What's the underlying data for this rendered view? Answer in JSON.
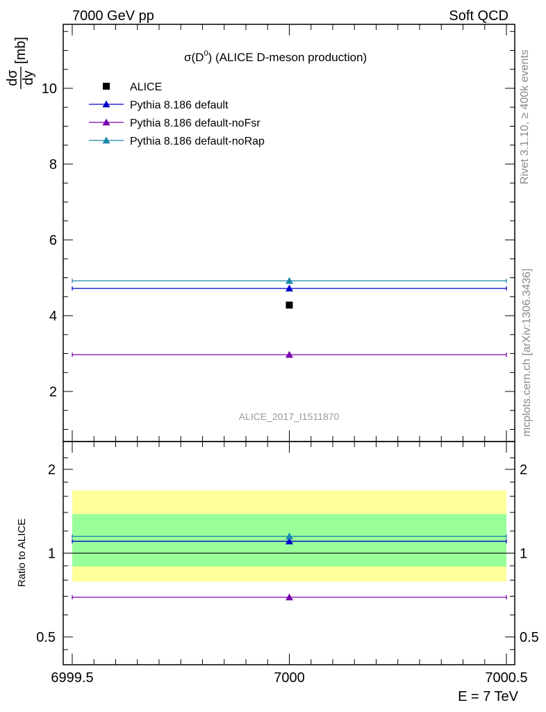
{
  "header": {
    "left": "7000 GeV pp",
    "right": "Soft QCD"
  },
  "side_labels": {
    "rivet": "Rivet 3.1.10, ≥ 400k events",
    "mcplots": "mcplots.cern.ch [arXiv:1306.3436]"
  },
  "chart_data": [
    {
      "type": "scatter",
      "title_main": "σ(D",
      "title_sup": "0",
      "title_rest": ") (ALICE D-meson production)",
      "ylabel": "dσ/dy [mb]",
      "ylabel_num": "dσ",
      "ylabel_den": "dy",
      "ylabel_unit": "[mb]",
      "xlim": [
        6999.5,
        7000.5
      ],
      "ylim": [
        0.8,
        11.7
      ],
      "y_ticks": [
        2,
        4,
        6,
        8,
        10
      ],
      "analysis_tag": "ALICE_2017_I1511870",
      "legend_position": "top-left",
      "data_point": {
        "name": "ALICE",
        "x": 7000,
        "y": 4.28,
        "color": "#000000"
      },
      "series": [
        {
          "name": "Pythia 8.186 default",
          "x": [
            7000
          ],
          "y": [
            4.72
          ],
          "xrange": [
            6999.5,
            7000.5
          ],
          "color": "#0000cc"
        },
        {
          "name": "Pythia 8.186 default-noFsr",
          "x": [
            7000
          ],
          "y": [
            2.97
          ],
          "xrange": [
            6999.5,
            7000.5
          ],
          "color": "#7700aa"
        },
        {
          "name": "Pythia 8.186 default-noRap",
          "x": [
            7000
          ],
          "y": [
            4.92
          ],
          "xrange": [
            6999.5,
            7000.5
          ],
          "color": "#1a88aa"
        }
      ]
    },
    {
      "type": "scatter",
      "ylabel": "Ratio to ALICE",
      "xlabel": "E = 7 TeV",
      "log_y": true,
      "ylim": [
        0.42,
        2.35
      ],
      "y_ticks": [
        0.5,
        1,
        2
      ],
      "y_tick_labels": [
        "0.5",
        "1",
        "2"
      ],
      "x_ticks": [
        6999.5,
        7000,
        7000.5
      ],
      "x_tick_labels": [
        "6999.5",
        "7000",
        "7000.5"
      ],
      "uncertainty_bands": [
        {
          "level": "outer",
          "low": 0.79,
          "high": 1.68,
          "color": "#ffff99"
        },
        {
          "level": "inner",
          "low": 0.895,
          "high": 1.38,
          "color": "#99ff99"
        }
      ],
      "reference": 1,
      "series": [
        {
          "name": "Pythia 8.186 default",
          "x": [
            7000
          ],
          "y": [
            1.103
          ],
          "color": "#0000cc"
        },
        {
          "name": "Pythia 8.186 default-noFsr",
          "x": [
            7000
          ],
          "y": [
            0.694
          ],
          "color": "#7700aa"
        },
        {
          "name": "Pythia 8.186 default-noRap",
          "x": [
            7000
          ],
          "y": [
            1.149
          ],
          "color": "#1a88aa"
        }
      ]
    }
  ]
}
